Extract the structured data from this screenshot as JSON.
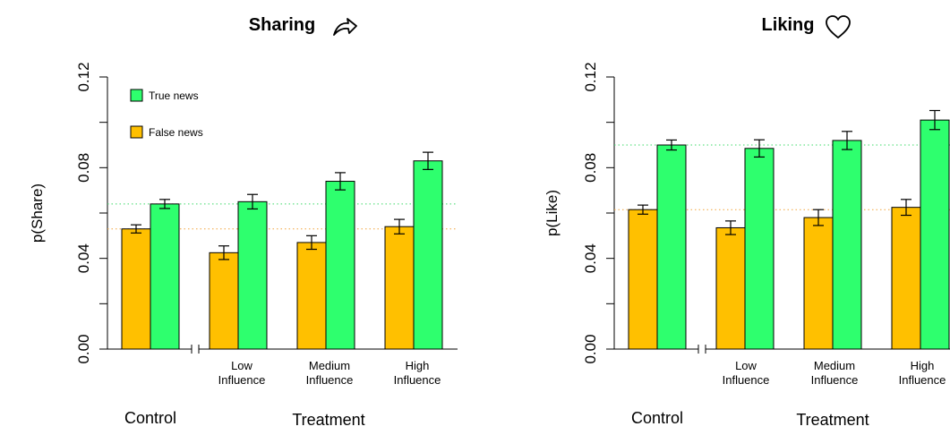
{
  "colors": {
    "false_news": "#FFC000",
    "true_news": "#2EFF6E",
    "true_ref": "#3ED96A",
    "false_ref": "#F2A33A"
  },
  "legend": {
    "true_label": "True news",
    "false_label": "False news"
  },
  "icons": {
    "share": "share-arrow-icon",
    "like": "heart-outline-icon"
  },
  "chart_data": [
    {
      "type": "bar",
      "title": "Sharing",
      "ylabel": "p(Share)",
      "ylim": [
        0,
        0.12
      ],
      "yticks": [
        "0.00",
        "0.04",
        "0.08",
        "0.12"
      ],
      "group_labels": {
        "control": "Control",
        "treatment": "Treatment"
      },
      "categories": [
        {
          "line1": "",
          "line2": ""
        },
        {
          "line1": "Low",
          "line2": "Influence"
        },
        {
          "line1": "Medium",
          "line2": "Influence"
        },
        {
          "line1": "High",
          "line2": "Influence"
        }
      ],
      "series": [
        {
          "name": "False news",
          "values": [
            0.053,
            0.0425,
            0.047,
            0.054
          ],
          "err": [
            0.0018,
            0.003,
            0.003,
            0.0032
          ]
        },
        {
          "name": "True news",
          "values": [
            0.064,
            0.065,
            0.074,
            0.083
          ],
          "err": [
            0.002,
            0.0032,
            0.0038,
            0.0038
          ]
        }
      ],
      "reference_lines": {
        "true": 0.064,
        "false": 0.053
      }
    },
    {
      "type": "bar",
      "title": "Liking",
      "ylabel": "p(Like)",
      "ylim": [
        0,
        0.12
      ],
      "yticks": [
        "0.00",
        "0.04",
        "0.08",
        "0.12"
      ],
      "group_labels": {
        "control": "Control",
        "treatment": "Treatment"
      },
      "categories": [
        {
          "line1": "",
          "line2": ""
        },
        {
          "line1": "Low",
          "line2": "Influence"
        },
        {
          "line1": "Medium",
          "line2": "Influence"
        },
        {
          "line1": "High",
          "line2": "Influence"
        }
      ],
      "series": [
        {
          "name": "False news",
          "values": [
            0.0615,
            0.0535,
            0.058,
            0.0625
          ],
          "err": [
            0.002,
            0.003,
            0.0035,
            0.0035
          ]
        },
        {
          "name": "True news",
          "values": [
            0.09,
            0.0885,
            0.092,
            0.101
          ],
          "err": [
            0.0022,
            0.0038,
            0.004,
            0.0042
          ]
        }
      ],
      "reference_lines": {
        "true": 0.09,
        "false": 0.0615
      }
    }
  ]
}
